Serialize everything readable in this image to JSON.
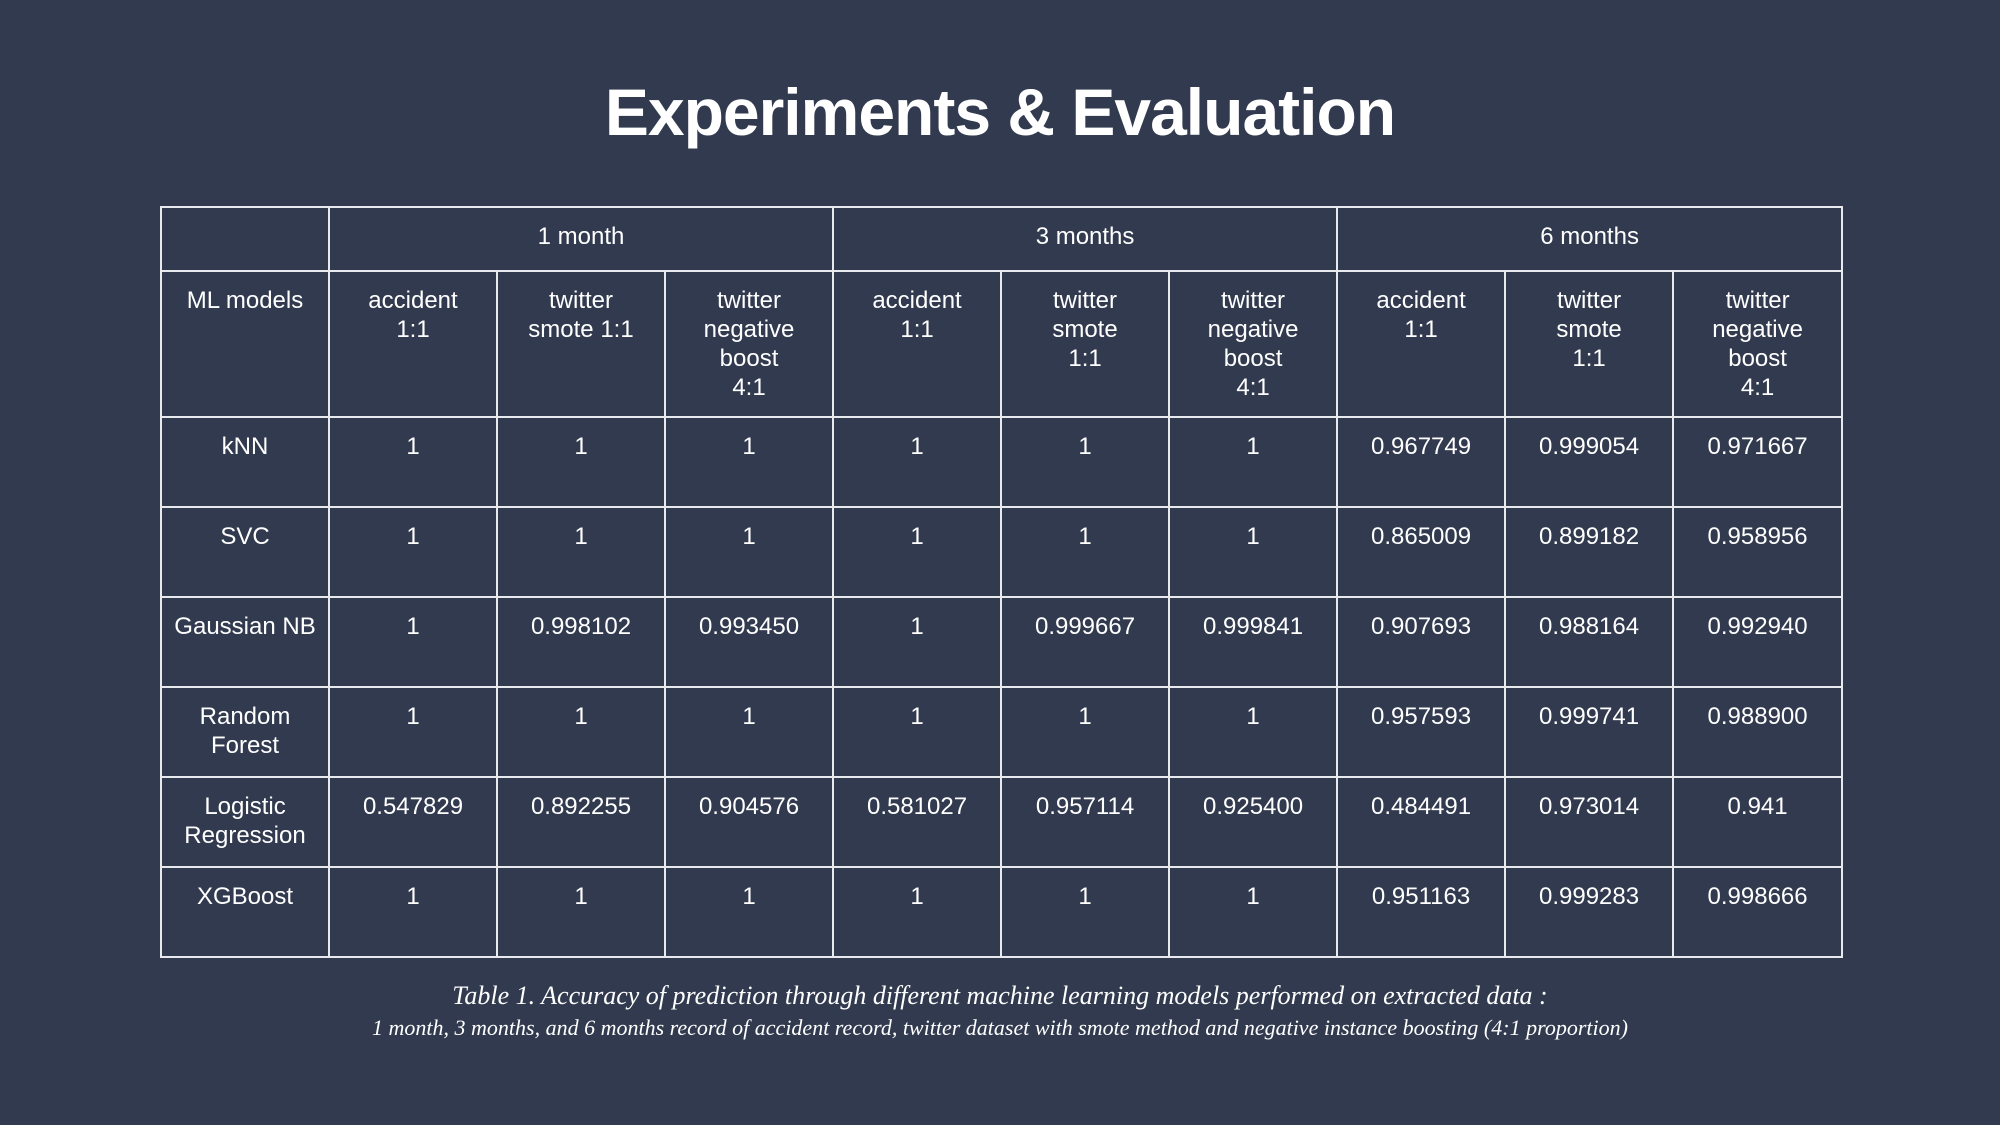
{
  "title": "Experiments & Evaluation",
  "table": {
    "groups": [
      "",
      "1 month",
      "3 months",
      "6 months"
    ],
    "corner_label": "ML models",
    "subheaders": [
      [
        "accident",
        "1:1"
      ],
      [
        "twitter",
        "smote 1:1"
      ],
      [
        "twitter",
        "negative",
        "boost",
        "4:1"
      ],
      [
        "accident",
        "1:1"
      ],
      [
        "twitter",
        "smote",
        "1:1"
      ],
      [
        "twitter",
        "negative",
        "boost",
        "4:1"
      ],
      [
        "accident",
        "1:1"
      ],
      [
        "twitter",
        "smote",
        "1:1"
      ],
      [
        "twitter",
        "negative",
        "boost",
        "4:1"
      ]
    ],
    "rows": [
      {
        "model": [
          "kNN"
        ],
        "values": [
          "1",
          "1",
          "1",
          "1",
          "1",
          "1",
          "0.967749",
          "0.999054",
          "0.971667"
        ],
        "bold": [
          6,
          8
        ]
      },
      {
        "model": [
          "SVC"
        ],
        "values": [
          "1",
          "1",
          "1",
          "1",
          "1",
          "1",
          "0.865009",
          "0.899182",
          "0.958956"
        ],
        "bold": [
          6,
          8
        ]
      },
      {
        "model": [
          "Gaussian NB"
        ],
        "values": [
          "1",
          "0.998102",
          "0.993450",
          "1",
          "0.999667",
          "0.999841",
          "0.907693",
          "0.988164",
          "0.992940"
        ],
        "bold": [
          6,
          8
        ]
      },
      {
        "model": [
          "Random",
          "Forest"
        ],
        "values": [
          "1",
          "1",
          "1",
          "1",
          "1",
          "1",
          "0.957593",
          "0.999741",
          "0.988900"
        ],
        "bold": [
          8
        ]
      },
      {
        "model": [
          "Logistic",
          "Regression"
        ],
        "values": [
          "0.547829",
          "0.892255",
          "0.904576",
          "0.581027",
          "0.957114",
          "0.925400",
          "0.484491",
          "0.973014",
          "0.941"
        ],
        "bold": [
          8
        ]
      },
      {
        "model": [
          "XGBoost"
        ],
        "values": [
          "1",
          "1",
          "1",
          "1",
          "1",
          "1",
          "0.951163",
          "0.999283",
          "0.998666"
        ],
        "bold": [
          8
        ]
      }
    ]
  },
  "caption": {
    "line1": "Table 1.   Accuracy of prediction through different machine learning models performed on extracted data :",
    "line2": "1 month, 3 months, and 6 months record of accident record, twitter dataset with smote method and negative instance boosting (4:1 proportion)"
  }
}
